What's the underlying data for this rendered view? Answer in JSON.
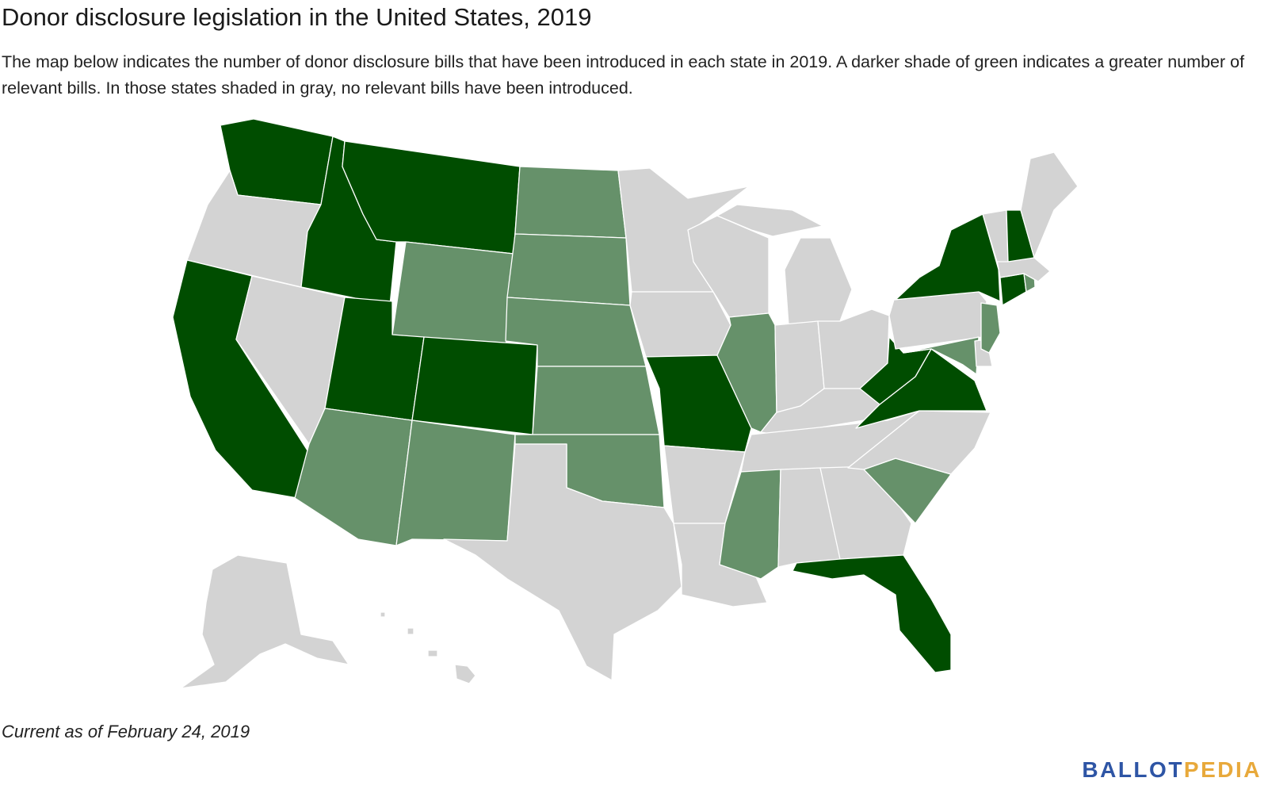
{
  "title": "Donor disclosure legislation in the United States, 2019",
  "subtitle": "The map below indicates the number of donor disclosure bills that have been introduced in each state in 2019. A darker shade of green indicates a greater number of relevant bills. In those states shaded in gray, no relevant bills have been introduced.",
  "note": "Current as of February 24, 2019",
  "logo": {
    "part1": "BALLOT",
    "part2": "PEDIA"
  },
  "colors": {
    "none": "#d3d3d3",
    "light": "#66916a",
    "dark": "#004d00",
    "logo_blue": "#2e55a5",
    "logo_gold": "#e8a93b"
  },
  "states": [
    {
      "id": "WA",
      "level": "dark"
    },
    {
      "id": "OR",
      "level": "none"
    },
    {
      "id": "CA",
      "level": "dark"
    },
    {
      "id": "ID",
      "level": "dark"
    },
    {
      "id": "NV",
      "level": "none"
    },
    {
      "id": "MT",
      "level": "dark"
    },
    {
      "id": "WY",
      "level": "light"
    },
    {
      "id": "UT",
      "level": "dark"
    },
    {
      "id": "AZ",
      "level": "light"
    },
    {
      "id": "CO",
      "level": "dark"
    },
    {
      "id": "NM",
      "level": "light"
    },
    {
      "id": "ND",
      "level": "light"
    },
    {
      "id": "SD",
      "level": "light"
    },
    {
      "id": "NE",
      "level": "light"
    },
    {
      "id": "KS",
      "level": "light"
    },
    {
      "id": "OK",
      "level": "light"
    },
    {
      "id": "TX",
      "level": "none"
    },
    {
      "id": "MN",
      "level": "none"
    },
    {
      "id": "IA",
      "level": "none"
    },
    {
      "id": "MO",
      "level": "dark"
    },
    {
      "id": "AR",
      "level": "none"
    },
    {
      "id": "LA",
      "level": "none"
    },
    {
      "id": "WI",
      "level": "none"
    },
    {
      "id": "IL",
      "level": "light"
    },
    {
      "id": "MI",
      "level": "none"
    },
    {
      "id": "IN",
      "level": "none"
    },
    {
      "id": "OH",
      "level": "none"
    },
    {
      "id": "KY",
      "level": "none"
    },
    {
      "id": "TN",
      "level": "none"
    },
    {
      "id": "MS",
      "level": "light"
    },
    {
      "id": "AL",
      "level": "none"
    },
    {
      "id": "GA",
      "level": "none"
    },
    {
      "id": "FL",
      "level": "dark"
    },
    {
      "id": "SC",
      "level": "light"
    },
    {
      "id": "NC",
      "level": "none"
    },
    {
      "id": "VA",
      "level": "dark"
    },
    {
      "id": "WV",
      "level": "dark"
    },
    {
      "id": "MD",
      "level": "light"
    },
    {
      "id": "DE",
      "level": "none"
    },
    {
      "id": "PA",
      "level": "none"
    },
    {
      "id": "NJ",
      "level": "light"
    },
    {
      "id": "NY",
      "level": "dark"
    },
    {
      "id": "CT",
      "level": "dark"
    },
    {
      "id": "RI",
      "level": "light"
    },
    {
      "id": "MA",
      "level": "none"
    },
    {
      "id": "VT",
      "level": "none"
    },
    {
      "id": "NH",
      "level": "dark"
    },
    {
      "id": "ME",
      "level": "none"
    },
    {
      "id": "AK",
      "level": "none"
    },
    {
      "id": "HI",
      "level": "none"
    }
  ]
}
